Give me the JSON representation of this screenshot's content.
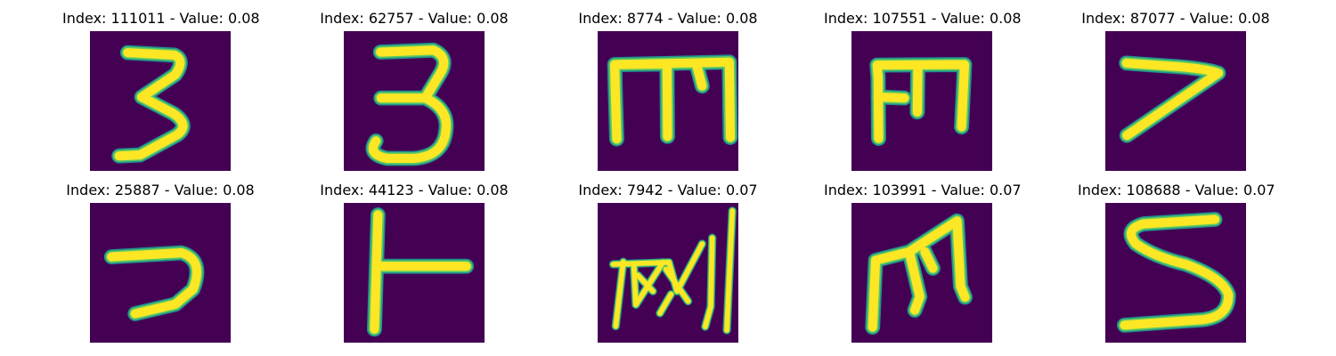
{
  "figure": {
    "background": "#ffffff",
    "colors": {
      "image_background": "#440154",
      "stroke_edge": "#21918c",
      "stroke_mid": "#5ec962",
      "stroke_core": "#fde725"
    },
    "panels": [
      {
        "title": "Index: 111011 - Value: 0.08",
        "index": 111011,
        "value": 0.08,
        "glyph": "3"
      },
      {
        "title": "Index: 62757 - Value: 0.08",
        "index": 62757,
        "value": 0.08,
        "glyph": "3"
      },
      {
        "title": "Index: 8774 - Value: 0.08",
        "index": 8774,
        "value": 0.08,
        "glyph": "m"
      },
      {
        "title": "Index: 107551 - Value: 0.08",
        "index": 107551,
        "value": 0.08,
        "glyph": "m"
      },
      {
        "title": "Index: 87077 - Value: 0.08",
        "index": 87077,
        "value": 0.08,
        "glyph": "7"
      },
      {
        "title": "Index: 25887 - Value: 0.08",
        "index": 25887,
        "value": 0.08,
        "glyph": "7"
      },
      {
        "title": "Index: 44123 - Value: 0.08",
        "index": 44123,
        "value": 0.08,
        "glyph": "T"
      },
      {
        "title": "Index: 7942 - Value: 0.07",
        "index": 7942,
        "value": 0.07,
        "glyph": "scribble"
      },
      {
        "title": "Index: 103991 - Value: 0.07",
        "index": 103991,
        "value": 0.07,
        "glyph": "m"
      },
      {
        "title": "Index: 108688 - Value: 0.07",
        "index": 108688,
        "value": 0.07,
        "glyph": "S"
      }
    ]
  }
}
